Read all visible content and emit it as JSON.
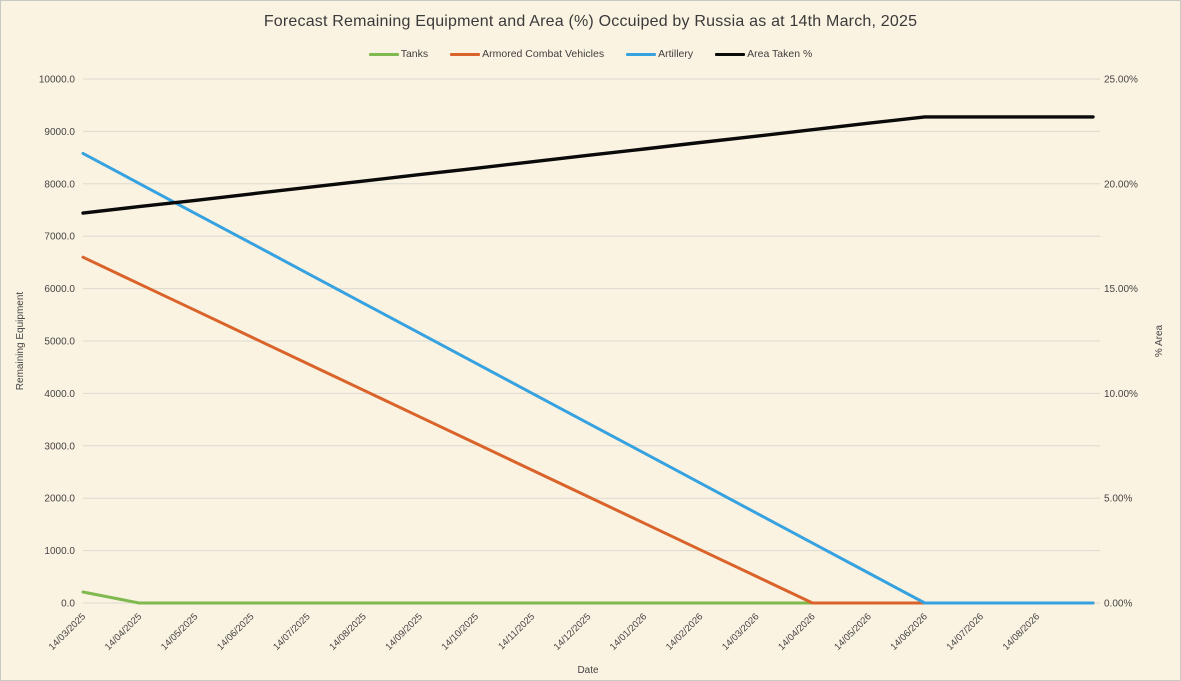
{
  "window": {
    "background": "#FBF3E2",
    "border_color": "#c9c9c4"
  },
  "colors": {
    "grid": "#DBD9CF",
    "tick_text": "#444444",
    "title_text": "#3a3a3a"
  },
  "chart_data": {
    "type": "line",
    "title": "Forecast Remaining Equipment and Area (%) Occuiped by Russia as at 14th March, 2025",
    "xlabel": "Date",
    "ylabel_left": "Remaining Equipment",
    "ylabel_right": "% Area",
    "legend_position": "top",
    "grid": true,
    "left_axis": {
      "min": 0,
      "max": 10000,
      "tick_step": 1000,
      "tick_labels": [
        "10000.0",
        "9000.0",
        "8000.0",
        "7000.0",
        "6000.0",
        "5000.0",
        "4000.0",
        "3000.0",
        "2000.0",
        "1000.0",
        "0.0"
      ]
    },
    "right_axis": {
      "min": 0,
      "max": 25,
      "label_step": 5,
      "minor_tick_step": 2.5,
      "tick_labels": [
        "25.00%",
        "20.00%",
        "15.00%",
        "10.00%",
        "5.00%",
        "0.00%"
      ]
    },
    "categories": [
      "14/03/2025",
      "14/04/2025",
      "14/05/2025",
      "14/06/2025",
      "14/07/2025",
      "14/08/2025",
      "14/09/2025",
      "14/10/2025",
      "14/11/2025",
      "14/12/2025",
      "14/01/2026",
      "14/02/2026",
      "14/03/2026",
      "14/04/2026",
      "14/05/2026",
      "14/06/2026",
      "14/07/2026",
      "14/08/2026"
    ],
    "series": [
      {
        "name": "Tanks",
        "color": "#7FB94F",
        "axis": "left",
        "values": [
          210,
          0,
          0,
          0,
          0,
          0,
          0,
          0,
          0,
          0,
          0,
          0,
          0,
          0,
          0,
          0,
          0,
          0
        ]
      },
      {
        "name": "Armored Combat Vehicles",
        "color": "#D9632A",
        "axis": "left",
        "values": [
          6600,
          6092,
          5585,
          5077,
          4569,
          4062,
          3554,
          3046,
          2538,
          2031,
          1523,
          1015,
          508,
          0,
          0,
          0,
          0,
          0
        ]
      },
      {
        "name": "Artillery",
        "color": "#36A2E0",
        "axis": "left",
        "values": [
          8580,
          8008,
          7436,
          6864,
          6292,
          5720,
          5148,
          4576,
          4004,
          3432,
          2860,
          2288,
          1716,
          1144,
          572,
          0,
          0,
          0
        ]
      },
      {
        "name": "Area Taken %",
        "color": "#0A0A0A",
        "axis": "right",
        "values": [
          18.6,
          18.91,
          19.21,
          19.52,
          19.83,
          20.13,
          20.44,
          20.74,
          21.05,
          21.36,
          21.66,
          21.97,
          22.27,
          22.58,
          22.89,
          23.19,
          23.19,
          23.19
        ]
      }
    ]
  }
}
